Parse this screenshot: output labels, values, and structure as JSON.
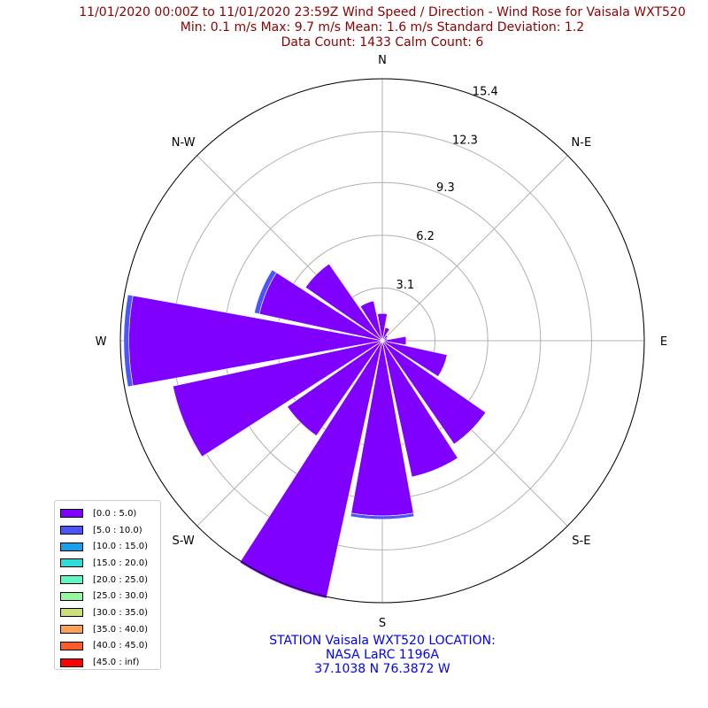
{
  "title": {
    "line1": "11/01/2020 00:00Z to 11/01/2020 23:59Z Wind Speed / Direction - Wind Rose for Vaisala WXT520",
    "line2": "Min: 0.1 m/s   Max: 9.7 m/s   Mean: 1.6 m/s  Standard Deviation: 1.2",
    "line3": "Data Count: 1433  Calm Count:  6"
  },
  "station": {
    "line1": "STATION Vaisala WXT520 LOCATION:",
    "line2": "NASA LaRC 1196A",
    "line3": "37.1038 N 76.3872 W"
  },
  "colors": {
    "title": "#8b0000",
    "station": "#0000ff",
    "grid": "#b0b0b0"
  },
  "chart_data": {
    "type": "windrose",
    "radial_ticks": [
      "3.1",
      "6.2",
      "9.3",
      "12.3",
      "15.4"
    ],
    "radial_tick_values": [
      3.1,
      6.2,
      9.3,
      12.3,
      15.4
    ],
    "rmax": 15.4,
    "direction_labels": [
      "N",
      "N-E",
      "E",
      "S-E",
      "S",
      "S-W",
      "W",
      "N-W"
    ],
    "direction_angles": [
      0,
      45,
      90,
      135,
      180,
      225,
      270,
      315
    ],
    "bins": [
      {
        "label": "[0.0 : 5.0)",
        "color": "#7f00ff"
      },
      {
        "label": "[5.0 : 10.0)",
        "color": "#4c54fc"
      },
      {
        "label": "[10.0 : 15.0)",
        "color": "#1c9ee8"
      },
      {
        "label": "[15.0 : 20.0)",
        "color": "#30dcd8"
      },
      {
        "label": "[20.0 : 25.0)",
        "color": "#60f8c2"
      },
      {
        "label": "[25.0 : 30.0)",
        "color": "#96f89e"
      },
      {
        "label": "[30.0 : 35.0)",
        "color": "#cce07a"
      },
      {
        "label": "[35.0 : 40.0)",
        "color": "#ffa256"
      },
      {
        "label": "[40.0 : 45.0)",
        "color": "#ff5a2c"
      },
      {
        "label": "[45.0 : inf)",
        "color": "#ff0000"
      }
    ],
    "sectors": [
      {
        "direction": 0.0,
        "values": [
          1.6,
          0.0
        ]
      },
      {
        "direction": 22.5,
        "values": [
          0.8,
          0.0
        ]
      },
      {
        "direction": 45.0,
        "values": [
          0.4,
          0.0
        ]
      },
      {
        "direction": 67.5,
        "values": [
          0.3,
          0.0
        ]
      },
      {
        "direction": 90.0,
        "values": [
          1.4,
          0.0
        ]
      },
      {
        "direction": 112.5,
        "values": [
          3.9,
          0.0
        ]
      },
      {
        "direction": 135.0,
        "values": [
          7.4,
          0.0
        ]
      },
      {
        "direction": 157.5,
        "values": [
          8.2,
          0.0
        ]
      },
      {
        "direction": 180.0,
        "values": [
          10.3,
          0.2
        ]
      },
      {
        "direction": 202.5,
        "values": [
          15.5,
          0.0
        ]
      },
      {
        "direction": 225.0,
        "values": [
          6.8,
          0.0
        ]
      },
      {
        "direction": 247.5,
        "values": [
          12.6,
          0.0
        ]
      },
      {
        "direction": 270.0,
        "values": [
          14.9,
          0.3
        ]
      },
      {
        "direction": 292.5,
        "values": [
          7.4,
          0.3
        ]
      },
      {
        "direction": 315.0,
        "values": [
          5.5,
          0.0
        ]
      },
      {
        "direction": 337.5,
        "values": [
          2.4,
          0.0
        ]
      }
    ]
  }
}
